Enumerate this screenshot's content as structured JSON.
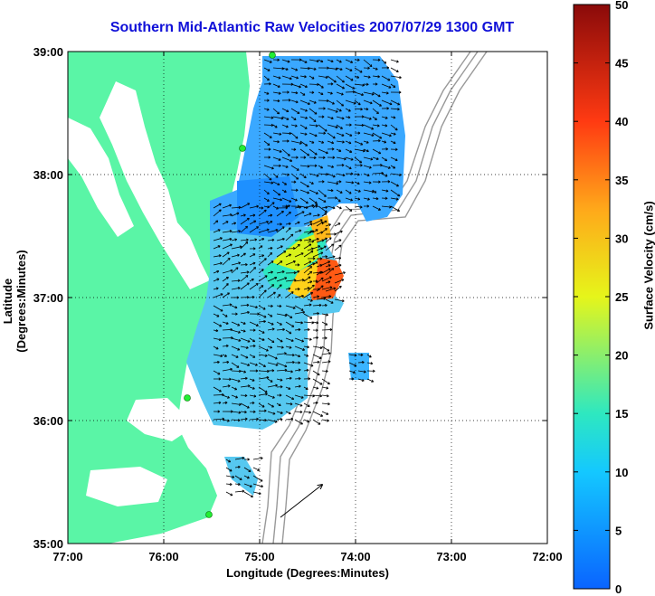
{
  "title": "Southern Mid-Atlantic Raw Velocities 2007/07/29 1300 GMT",
  "xlabel": "Longitude (Degrees:Minutes)",
  "ylabel": "Latitude (Degrees:Minutes)",
  "colorbar": {
    "label": "Surface Velocity (cm/s)",
    "ticks": [
      "0",
      "5",
      "10",
      "15",
      "20",
      "25",
      "30",
      "35",
      "40",
      "45",
      "50"
    ],
    "range": [
      0,
      50
    ]
  },
  "map": {
    "lon_ticks": [
      "77:00",
      "76:00",
      "75:00",
      "74:00",
      "73:00",
      "72:00"
    ],
    "lat_ticks": [
      "39:00",
      "38:00",
      "37:00",
      "36:00",
      "35:00"
    ],
    "lon_range": [
      -77,
      -72
    ],
    "lat_range": [
      35,
      39
    ],
    "land_color": "#5af5a6",
    "contour_color": "#999999",
    "station_color": "#22ee33",
    "scale_arrow": "reference vector"
  }
}
